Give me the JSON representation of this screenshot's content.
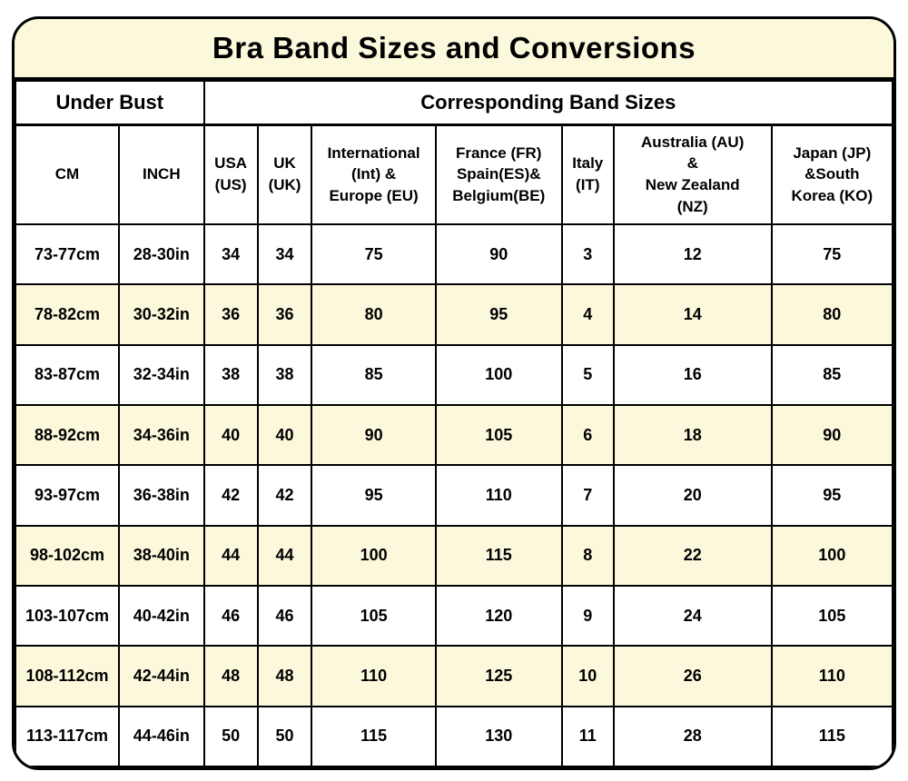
{
  "title": "Bra Band Sizes and Conversions",
  "header_groups": {
    "under_bust": "Under Bust",
    "band_sizes": "Corresponding Band Sizes"
  },
  "columns": [
    "CM",
    "INCH",
    "USA\n(US)",
    "UK\n(UK)",
    "International\n(Int) &\nEurope (EU)",
    "France (FR)\nSpain(ES)&\nBelgium(BE)",
    "Italy\n(IT)",
    "Australia (AU)\n&\nNew Zealand\n(NZ)",
    "Japan (JP)\n&South\nKorea (KO)"
  ],
  "rows": [
    [
      "73-77cm",
      "28-30in",
      "34",
      "34",
      "75",
      "90",
      "3",
      "12",
      "75"
    ],
    [
      "78-82cm",
      "30-32in",
      "36",
      "36",
      "80",
      "95",
      "4",
      "14",
      "80"
    ],
    [
      "83-87cm",
      "32-34in",
      "38",
      "38",
      "85",
      "100",
      "5",
      "16",
      "85"
    ],
    [
      "88-92cm",
      "34-36in",
      "40",
      "40",
      "90",
      "105",
      "6",
      "18",
      "90"
    ],
    [
      "93-97cm",
      "36-38in",
      "42",
      "42",
      "95",
      "110",
      "7",
      "20",
      "95"
    ],
    [
      "98-102cm",
      "38-40in",
      "44",
      "44",
      "100",
      "115",
      "8",
      "22",
      "100"
    ],
    [
      "103-107cm",
      "40-42in",
      "46",
      "46",
      "105",
      "120",
      "9",
      "24",
      "105"
    ],
    [
      "108-112cm",
      "42-44in",
      "48",
      "48",
      "110",
      "125",
      "10",
      "26",
      "110"
    ],
    [
      "113-117cm",
      "44-46in",
      "50",
      "50",
      "115",
      "130",
      "11",
      "28",
      "115"
    ]
  ],
  "colors": {
    "banner_background": "#FBF8DC",
    "row_stripe_background": "#FBF8DC",
    "border": "#000000",
    "page_background": "#FFFFFF",
    "text": "#000000"
  }
}
